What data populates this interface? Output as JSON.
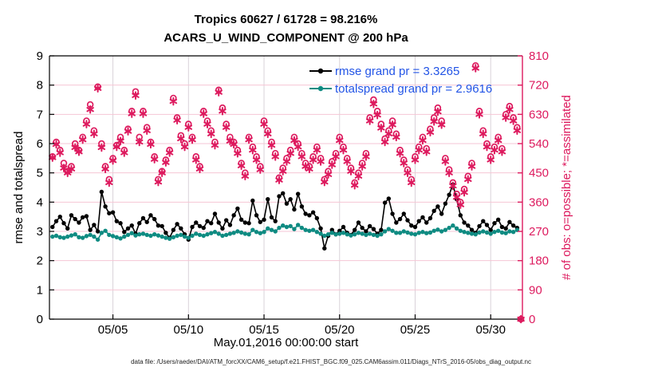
{
  "figure": {
    "title_line1": "Tropics 60627 / 61728 = 98.216%",
    "title_line2": "ACARS_U_WIND_COMPONENT @ 200 hPa",
    "xlabel": "May.01,2016 00:00:00 start",
    "ylabel_left": "rmse and totalspread",
    "ylabel_right": "# of obs: o=possible; *=assimilated",
    "footer": "data file: /Users/raeder/DAI/ATM_forcXX/CAM6_setup/f.e21.FHIST_BGC.f09_025.CAM6assim.011/Diags_NTrS_2016-05/obs_diag_output.nc",
    "legend": [
      {
        "label": "rmse grand pr = 3.3265",
        "color": "#000000"
      },
      {
        "label": "totalspread grand pr = 2.9616",
        "color": "#0f8b82"
      }
    ],
    "colors": {
      "obs_pink": "#dd1a5e",
      "teal": "#0f8b82",
      "legend_text": "#2254e6",
      "grid_horizontal": "#f6c6d4",
      "grid_vertical": "#d9d2d9",
      "axis_black": "#000000"
    }
  },
  "chart_data": {
    "type": "line",
    "title": "Tropics 60627 / 61728 = 98.216% | ACARS_U_WIND_COMPONENT @ 200 hPa",
    "x_axis": {
      "label": "May.01,2016 00:00:00 start",
      "range": [
        0.8,
        32.1
      ],
      "tick_values": [
        5,
        10,
        15,
        20,
        25,
        30
      ],
      "tick_labels": [
        "05/05",
        "05/10",
        "05/15",
        "05/20",
        "05/25",
        "05/30"
      ]
    },
    "y_left": {
      "label": "rmse and totalspread",
      "range": [
        0,
        9
      ],
      "tick_step": 1
    },
    "y_right": {
      "label": "# of obs: o=possible; *=assimilated",
      "range": [
        0,
        810
      ],
      "tick_step": 90
    },
    "grid": true,
    "legend_position": "top-right-inside",
    "t_start": 1,
    "t_step": 0.25,
    "series": [
      {
        "name": "rmse",
        "axis": "left",
        "style": "line+dot",
        "color": "#000000",
        "grand_pr": 3.3265,
        "values": [
          3.15,
          3.35,
          3.5,
          3.28,
          3.1,
          3.55,
          3.42,
          3.3,
          3.48,
          3.52,
          3.05,
          3.22,
          3.0,
          4.35,
          3.85,
          3.62,
          3.65,
          3.35,
          3.28,
          2.98,
          3.1,
          3.2,
          2.92,
          3.28,
          3.45,
          3.32,
          3.55,
          3.42,
          3.2,
          3.18,
          2.95,
          2.78,
          3.05,
          3.25,
          3.1,
          2.9,
          2.72,
          3.15,
          3.3,
          3.18,
          3.12,
          3.35,
          3.28,
          3.6,
          3.3,
          3.1,
          3.38,
          3.22,
          3.55,
          3.78,
          3.4,
          3.3,
          3.28,
          4.05,
          3.55,
          3.32,
          3.4,
          4.1,
          3.48,
          3.35,
          4.2,
          4.3,
          3.95,
          4.1,
          3.75,
          4.28,
          3.85,
          3.6,
          3.55,
          3.65,
          3.45,
          3.1,
          2.42,
          2.85,
          3.05,
          2.9,
          3.02,
          3.15,
          2.95,
          2.88,
          3.05,
          3.3,
          3.12,
          3.0,
          3.18,
          3.08,
          2.92,
          3.05,
          3.98,
          4.12,
          3.6,
          3.3,
          3.42,
          3.6,
          3.38,
          3.2,
          3.15,
          3.35,
          3.48,
          3.3,
          3.45,
          3.7,
          3.85,
          3.6,
          3.95,
          4.25,
          4.6,
          4.1,
          3.55,
          3.3,
          3.2,
          3.05,
          2.95,
          3.18,
          3.35,
          3.22,
          3.05,
          3.28,
          3.4,
          3.15,
          3.1,
          3.32,
          3.2,
          3.12
        ]
      },
      {
        "name": "totalspread",
        "axis": "left",
        "style": "line+dot",
        "color": "#0f8b82",
        "grand_pr": 2.9616,
        "values": [
          2.82,
          2.85,
          2.8,
          2.78,
          2.82,
          2.86,
          2.9,
          2.8,
          2.78,
          2.84,
          2.88,
          2.82,
          2.72,
          2.95,
          3.02,
          2.88,
          2.84,
          2.8,
          2.76,
          2.82,
          2.88,
          2.94,
          2.86,
          2.9,
          2.92,
          2.88,
          2.85,
          2.9,
          2.86,
          2.82,
          2.78,
          2.75,
          2.8,
          2.85,
          2.88,
          2.82,
          2.78,
          2.85,
          2.92,
          2.88,
          2.85,
          2.9,
          2.94,
          2.98,
          2.92,
          2.85,
          2.88,
          2.92,
          2.95,
          3.0,
          2.96,
          2.92,
          2.9,
          3.05,
          2.98,
          2.94,
          2.98,
          3.1,
          3.05,
          3.0,
          3.12,
          3.2,
          3.15,
          3.18,
          3.08,
          3.22,
          3.12,
          3.05,
          3.02,
          3.05,
          2.98,
          2.92,
          2.85,
          2.9,
          2.95,
          2.9,
          2.92,
          2.95,
          2.9,
          2.86,
          2.9,
          2.95,
          2.92,
          2.88,
          2.92,
          2.88,
          2.85,
          2.9,
          3.0,
          3.08,
          3.02,
          2.95,
          2.95,
          3.0,
          2.96,
          2.92,
          2.9,
          2.95,
          2.98,
          2.94,
          2.96,
          3.02,
          3.06,
          3.0,
          3.05,
          3.12,
          3.2,
          3.1,
          3.02,
          2.98,
          2.95,
          2.92,
          2.9,
          2.96,
          3.0,
          2.96,
          2.92,
          2.98,
          3.02,
          2.96,
          2.94,
          3.0,
          2.98,
          3.05
        ]
      },
      {
        "name": "possible",
        "axis": "right",
        "style": "circle-marker",
        "color": "#dd1a5e",
        "values": [
          500,
          545,
          520,
          480,
          455,
          470,
          540,
          520,
          560,
          610,
          660,
          580,
          715,
          540,
          470,
          430,
          495,
          535,
          560,
          520,
          585,
          640,
          700,
          560,
          640,
          590,
          545,
          500,
          430,
          455,
          490,
          520,
          680,
          620,
          565,
          540,
          600,
          560,
          500,
          470,
          640,
          610,
          580,
          545,
          705,
          650,
          600,
          560,
          545,
          520,
          480,
          450,
          560,
          530,
          500,
          470,
          610,
          580,
          545,
          510,
          435,
          465,
          495,
          520,
          560,
          540,
          510,
          480,
          470,
          500,
          530,
          495,
          430,
          455,
          485,
          510,
          560,
          530,
          495,
          465,
          420,
          450,
          480,
          510,
          620,
          675,
          640,
          600,
          555,
          580,
          610,
          570,
          520,
          490,
          460,
          430,
          500,
          530,
          560,
          525,
          585,
          620,
          650,
          610,
          495,
          460,
          420,
          385,
          360,
          400,
          440,
          480,
          780,
          640,
          580,
          540,
          500,
          530,
          560,
          525,
          630,
          655,
          620,
          590,
          0
        ]
      },
      {
        "name": "assimilated",
        "axis": "right",
        "style": "asterisk-marker",
        "color": "#dd1a5e",
        "values": [
          497,
          538,
          512,
          465,
          450,
          462,
          528,
          515,
          552,
          600,
          645,
          570,
          710,
          528,
          462,
          420,
          488,
          530,
          548,
          512,
          578,
          632,
          688,
          545,
          632,
          580,
          538,
          492,
          422,
          450,
          482,
          512,
          670,
          612,
          555,
          530,
          590,
          552,
          490,
          462,
          632,
          600,
          570,
          535,
          698,
          640,
          590,
          548,
          538,
          510,
          472,
          440,
          552,
          520,
          490,
          460,
          600,
          570,
          535,
          500,
          428,
          455,
          485,
          510,
          550,
          530,
          500,
          470,
          462,
          490,
          520,
          485,
          422,
          445,
          475,
          500,
          550,
          520,
          485,
          455,
          412,
          440,
          470,
          500,
          610,
          662,
          628,
          588,
          545,
          570,
          598,
          560,
          510,
          480,
          450,
          420,
          490,
          520,
          550,
          515,
          575,
          608,
          638,
          598,
          485,
          450,
          410,
          375,
          352,
          390,
          430,
          470,
          772,
          630,
          570,
          530,
          490,
          520,
          550,
          515,
          620,
          645,
          610,
          580,
          0
        ]
      }
    ]
  }
}
